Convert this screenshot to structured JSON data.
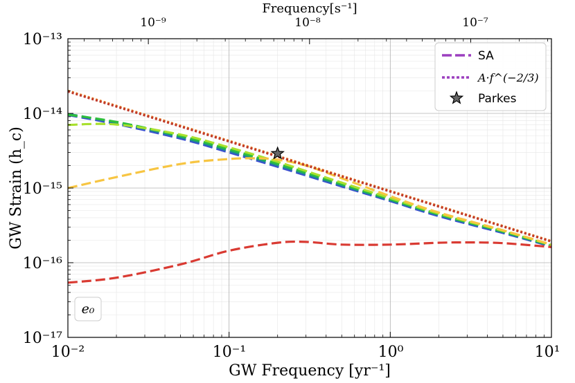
{
  "chart_data": {
    "type": "line",
    "xscale": "log",
    "yscale": "log",
    "xlim": [
      0.01,
      10
    ],
    "ylim": [
      1e-17,
      1e-13
    ],
    "xlabel": "GW Frequency [yr⁻¹]",
    "ylabel": "GW Strain (h_c)",
    "top_xlabel": "Frequency[s⁻¹]",
    "x_ticks": [
      0.01,
      0.1,
      1,
      10
    ],
    "x_tick_labels": [
      "10⁻²",
      "10⁻¹",
      "10⁰",
      "10¹"
    ],
    "y_ticks": [
      1e-13,
      1e-14,
      1e-15,
      1e-16,
      1e-17
    ],
    "y_tick_labels": [
      "10⁻¹³",
      "10⁻¹⁴",
      "10⁻¹⁵",
      "10⁻¹⁶",
      "10⁻¹⁷"
    ],
    "top_ticks_hz": [
      1e-09,
      1e-08,
      1e-07
    ],
    "top_tick_labels": [
      "10⁻⁹",
      "10⁻⁸",
      "10⁻⁷"
    ],
    "legend": {
      "position": "top-right",
      "entries": [
        {
          "label": "SA",
          "style": "dashed",
          "color": "#9b3fbf"
        },
        {
          "label": "A·f^(−2/3)",
          "style": "dotted",
          "color": "#9b3fbf"
        },
        {
          "label": "Parkes",
          "style": "star",
          "color": "#666666"
        }
      ]
    },
    "annotation": "e₀",
    "powerlaw": {
      "A": 1.25e-15,
      "slope": -0.6667
    },
    "series": [
      {
        "name": "e0-blue",
        "style": "dashed",
        "color": "#3a4fd0",
        "x": [
          0.01,
          0.02,
          0.05,
          0.1,
          0.2,
          0.5,
          1,
          2,
          5,
          10
        ],
        "y": [
          9.5e-15,
          7.2e-15,
          4.6e-15,
          3e-15,
          1.93e-15,
          1.05e-15,
          6.7e-16,
          4.2e-16,
          2.5e-16,
          1.65e-16
        ]
      },
      {
        "name": "e0-teal",
        "style": "dashed",
        "color": "#1e8f8a",
        "x": [
          0.01,
          0.02,
          0.05,
          0.1,
          0.2,
          0.5,
          1,
          2,
          5,
          10
        ],
        "y": [
          9.8e-15,
          7.5e-15,
          4.8e-15,
          3.15e-15,
          2.02e-15,
          1.09e-15,
          6.9e-16,
          4.35e-16,
          2.57e-16,
          1.68e-16
        ]
      },
      {
        "name": "e0-green",
        "style": "dashed",
        "color": "#2fbf3c",
        "x": [
          0.01,
          0.02,
          0.05,
          0.1,
          0.2,
          0.5,
          1,
          2,
          5,
          10
        ],
        "y": [
          9.6e-15,
          7.7e-15,
          5e-15,
          3.3e-15,
          2.12e-15,
          1.13e-15,
          7.1e-16,
          4.45e-16,
          2.62e-16,
          1.7e-16
        ]
      },
      {
        "name": "e0-lime",
        "style": "dashed",
        "color": "#a8e02e",
        "x": [
          0.01,
          0.02,
          0.05,
          0.1,
          0.2,
          0.5,
          1,
          2,
          5,
          10
        ],
        "y": [
          7e-15,
          7.1e-15,
          5.2e-15,
          3.5e-15,
          2.25e-15,
          1.18e-15,
          7.35e-16,
          4.55e-16,
          2.68e-16,
          1.73e-16
        ]
      },
      {
        "name": "e0-yellow",
        "style": "dashed",
        "color": "#f7c542",
        "x": [
          0.01,
          0.02,
          0.05,
          0.1,
          0.15,
          0.2,
          0.3,
          0.5,
          1,
          2,
          5,
          10
        ],
        "y": [
          1e-15,
          1.4e-15,
          2.1e-15,
          2.45e-15,
          2.5e-15,
          2.4e-15,
          2e-15,
          1.35e-15,
          7.8e-16,
          4.7e-16,
          2.72e-16,
          1.75e-16
        ]
      },
      {
        "name": "e0-red",
        "style": "dashed",
        "color": "#d93a32",
        "x": [
          0.01,
          0.02,
          0.05,
          0.1,
          0.2,
          0.3,
          0.5,
          1,
          2,
          3,
          5,
          10
        ],
        "y": [
          5.4e-17,
          6.3e-17,
          9.5e-17,
          1.45e-16,
          1.85e-16,
          1.9e-16,
          1.75e-16,
          1.75e-16,
          1.85e-16,
          1.87e-16,
          1.83e-16,
          1.62e-16
        ]
      },
      {
        "name": "powerlaw-orange",
        "style": "dotted",
        "color": "#e67e22",
        "x": [
          0.01,
          10
        ],
        "y": [
          2.01e-14,
          1.95e-16
        ]
      },
      {
        "name": "powerlaw-red",
        "style": "dotted",
        "color": "#c0392b",
        "x": [
          0.01,
          10
        ],
        "y": [
          1.96e-14,
          1.92e-16
        ]
      }
    ],
    "points": [
      {
        "name": "Parkes",
        "x": 0.2,
        "y": 2.9e-15,
        "marker": "star",
        "color": "#666666"
      }
    ]
  }
}
